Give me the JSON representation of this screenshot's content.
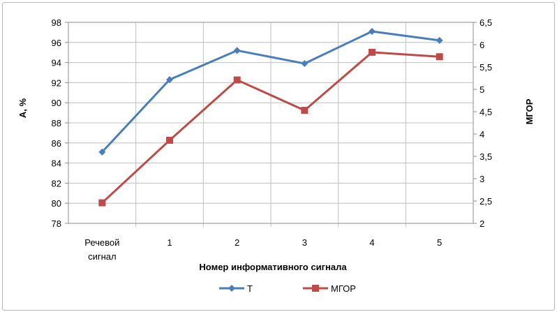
{
  "chart_data": {
    "type": "line",
    "categories": [
      "Речевой сигнал",
      "1",
      "2",
      "3",
      "4",
      "5"
    ],
    "series": [
      {
        "name": "Т",
        "axis": "left",
        "color": "#4a7ebb",
        "marker": "diamond",
        "values": [
          85.1,
          92.3,
          95.2,
          93.9,
          97.1,
          96.2
        ]
      },
      {
        "name": "МГОР",
        "axis": "right",
        "color": "#be4b48",
        "marker": "square",
        "values": [
          2.46,
          3.86,
          5.21,
          4.53,
          5.83,
          5.73
        ]
      }
    ],
    "xlabel": "Номер информативного сигнала",
    "ylabel": "А, %",
    "ylabel_right": "МГОР",
    "ylim": [
      78,
      98
    ],
    "ylim_right": [
      2,
      6.5
    ],
    "yticks": [
      "78",
      "80",
      "82",
      "84",
      "86",
      "88",
      "90",
      "92",
      "94",
      "96",
      "98"
    ],
    "yticks_right": [
      "2",
      "2,5",
      "3",
      "3,5",
      "4",
      "4,5",
      "5",
      "5,5",
      "6",
      "6,5"
    ],
    "grid": true,
    "legend_position": "bottom"
  }
}
